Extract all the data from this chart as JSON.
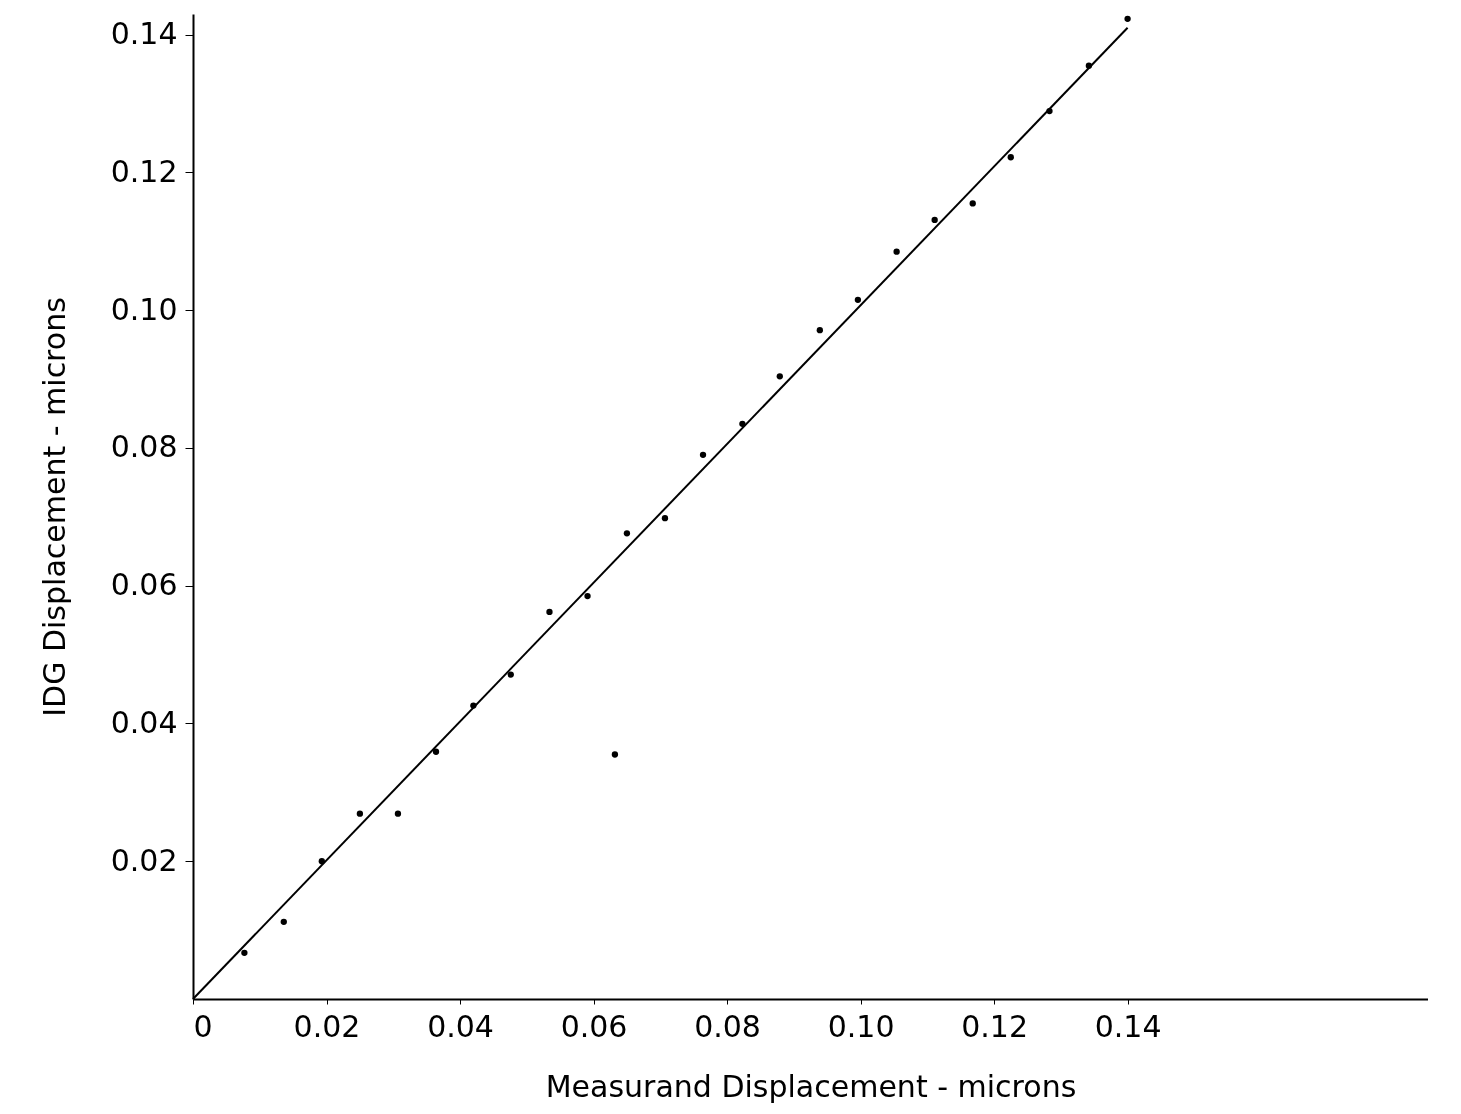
{
  "chart_data": {
    "type": "scatter",
    "xlabel": "Measurand   Displacement - microns",
    "ylabel": "IDG   Displacement - microns",
    "xlim": [
      0,
      0.185
    ],
    "ylim": [
      0,
      0.143
    ],
    "xticks": [
      {
        "value": 0,
        "label": "0"
      },
      0.02,
      0.04,
      0.06,
      0.08,
      {
        "value": 0.1,
        "label": "0.10"
      },
      0.12,
      0.14
    ],
    "yticks": [
      0.02,
      0.04,
      0.06,
      0.08,
      {
        "value": 0.1,
        "label": "0.10"
      },
      0.12,
      0.14
    ],
    "grid": false,
    "series": [
      {
        "color": "#000000",
        "marker": "circle",
        "x": [
          0.0077,
          0.0136,
          0.0193,
          0.025,
          0.0307,
          0.0364,
          0.042,
          0.0476,
          0.0534,
          0.0591,
          0.0632,
          0.065,
          0.0707,
          0.0764,
          0.0823,
          0.0879,
          0.0939,
          0.0996,
          0.1054,
          0.1111,
          0.1168,
          0.1225,
          0.1283,
          0.1342,
          0.14
        ],
        "values": [
          0.0067,
          0.0112,
          0.02,
          0.0269,
          0.0269,
          0.0359,
          0.0426,
          0.0471,
          0.0562,
          0.0585,
          0.0355,
          0.0676,
          0.0698,
          0.079,
          0.0835,
          0.0904,
          0.0971,
          0.1015,
          0.1085,
          0.1131,
          0.1155,
          0.1222,
          0.1289,
          0.1355,
          0.1423
        ]
      },
      {
        "type": "line",
        "color": "#000000",
        "x": [
          0,
          0.14
        ],
        "values": [
          0,
          0.141
        ]
      }
    ]
  }
}
